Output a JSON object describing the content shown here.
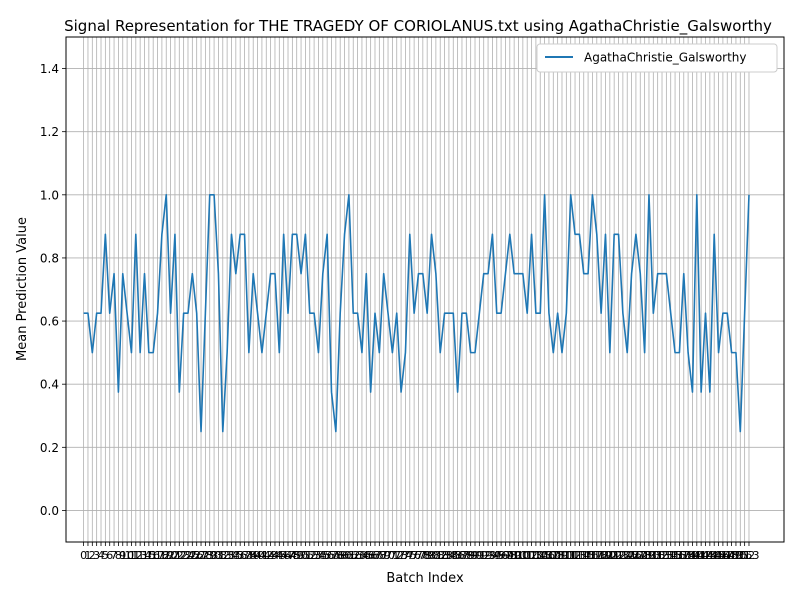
{
  "chart_data": {
    "type": "line",
    "title": "Signal Representation for THE TRAGEDY OF CORIOLANUS.txt using AgathaChristie_Galsworthy",
    "xlabel": "Batch Index",
    "ylabel": "Mean Prediction Value",
    "xlim": [
      -4.05,
      161.05
    ],
    "ylim": [
      -0.1,
      1.5
    ],
    "yticks": [
      "0.0",
      "0.2",
      "0.4",
      "0.6",
      "0.8",
      "1.0",
      "1.2",
      "1.4"
    ],
    "grid": true,
    "legend_position": "top-right",
    "x_tick_every_integer": true,
    "x_tick_count": 154,
    "x_tick_label_mapping": "batch index i is labeled by its data index",
    "series": [
      {
        "name": "AgathaChristie_Galsworthy",
        "color": "#1f77b4",
        "values": [
          0.625,
          0.625,
          0.5,
          0.625,
          0.625,
          0.875,
          0.625,
          0.75,
          0.375,
          0.75,
          0.625,
          0.5,
          0.875,
          0.5,
          0.75,
          0.5,
          0.5,
          0.625,
          0.875,
          1.0,
          0.625,
          0.875,
          0.375,
          0.625,
          0.625,
          0.75,
          0.625,
          0.25,
          0.625,
          1.0,
          1.0,
          0.75,
          0.25,
          0.5,
          0.875,
          0.75,
          0.875,
          0.875,
          0.5,
          0.75,
          0.625,
          0.5,
          0.625,
          0.75,
          0.75,
          0.5,
          0.875,
          0.625,
          0.875,
          0.875,
          0.75,
          0.875,
          0.625,
          0.625,
          0.5,
          0.75,
          0.875,
          0.375,
          0.25,
          0.625,
          0.875,
          1.0,
          0.625,
          0.625,
          0.5,
          0.75,
          0.375,
          0.625,
          0.5,
          0.75,
          0.625,
          0.5,
          0.625,
          0.375,
          0.5,
          0.875,
          0.625,
          0.75,
          0.75,
          0.625,
          0.875,
          0.75,
          0.5,
          0.625,
          0.625,
          0.625,
          0.375,
          0.625,
          0.625,
          0.5,
          0.5,
          0.625,
          0.75,
          0.75,
          0.875,
          0.625,
          0.625,
          0.75,
          0.875,
          0.75,
          0.75,
          0.75,
          0.625,
          0.875,
          0.625,
          0.625,
          1.0,
          0.625,
          0.5,
          0.625,
          0.5,
          0.625,
          1.0,
          0.875,
          0.875,
          0.75,
          0.75,
          1.0,
          0.875,
          0.625,
          0.875,
          0.5,
          0.875,
          0.875,
          0.625,
          0.5,
          0.75,
          0.875,
          0.75,
          0.5,
          1.0,
          0.625,
          0.75,
          0.75,
          0.75,
          0.625,
          0.5,
          0.5,
          0.75,
          0.5,
          0.375,
          1.0,
          0.375,
          0.625,
          0.375,
          0.875,
          0.5,
          0.625,
          0.625,
          0.5,
          0.5,
          0.25,
          0.625,
          1.0
        ]
      }
    ]
  }
}
